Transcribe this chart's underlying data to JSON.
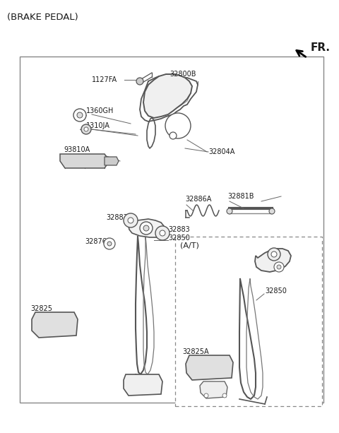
{
  "title": "(BRAKE PEDAL)",
  "fr_label": "FR.",
  "bg_color": "#ffffff",
  "border_color": "#999999",
  "dashed_border_color": "#999999",
  "text_color": "#1a1a1a",
  "line_color": "#333333",
  "at_label": "(A/T)",
  "label_fontsize": 7.0,
  "title_fontsize": 9.5,
  "fr_fontsize": 11.0
}
